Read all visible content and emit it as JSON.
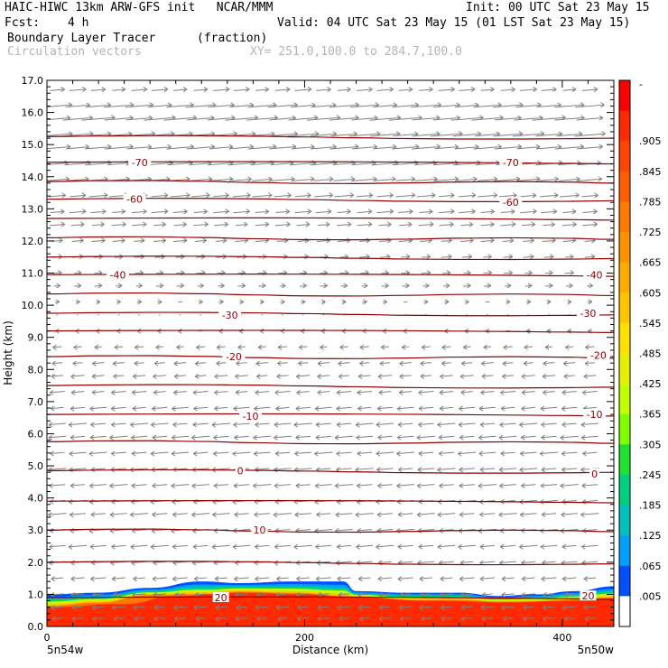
{
  "header": {
    "title_left": "HAIC-HIWC 13km ARW-GFS init   NCAR/MMM",
    "init": "Init: 00 UTC Sat 23 May 15",
    "fcst_label": "Fcst:",
    "fcst_value": "4 h",
    "valid": "Valid: 04 UTC Sat 23 May 15 (01 LST Sat 23 May 15)",
    "field": "Boundary Layer Tracer",
    "field_units": "(fraction)",
    "vectors": "Circulation vectors",
    "xy": "XY= 251.0,100.0 to 284.7,100.0"
  },
  "axes": {
    "ylabel": "Height (km)",
    "xlabel": "Distance (km)",
    "left_point": "5n54w",
    "right_point": "5n50w"
  },
  "colors": {
    "contour": "#8b0000",
    "vector": "#808080",
    "tracer_blue": "#0050ff",
    "tracer_red": "#ff2a00"
  },
  "chart_data": {
    "type": "heatmap",
    "xlim": [
      0,
      440
    ],
    "ylim": [
      0,
      17
    ],
    "x_ticks": [
      0,
      200,
      400
    ],
    "y_ticks": [
      "0.0",
      "1.0",
      "2.0",
      "3.0",
      "4.0",
      "5.0",
      "6.0",
      "7.0",
      "8.0",
      "9.0",
      "10.0",
      "11.0",
      "12.0",
      "13.0",
      "14.0",
      "15.0",
      "16.0",
      "17.0"
    ],
    "colorbar_labels": [
      "-",
      ".905",
      ".845",
      ".785",
      ".725",
      ".665",
      ".605",
      ".545",
      ".485",
      ".425",
      ".365",
      ".305",
      ".245",
      ".185",
      ".125",
      ".065",
      ".005"
    ],
    "colorbar_colors": [
      "#ff0000",
      "#ff2a00",
      "#ff4400",
      "#ff5e00",
      "#ff7800",
      "#ff9200",
      "#ffac00",
      "#ffc600",
      "#ffe000",
      "#e6f000",
      "#c0ff00",
      "#80ff00",
      "#20e030",
      "#00d080",
      "#00c0c0",
      "#00a0ff",
      "#0050ff",
      "#ffffff"
    ],
    "contour_heights_km": [
      0.9,
      2.0,
      3.0,
      3.9,
      4.85,
      5.75,
      6.6,
      7.5,
      8.4,
      9.2,
      9.75,
      10.35,
      10.95,
      11.5,
      12.1,
      12.7,
      13.3,
      13.85,
      14.45,
      15.25
    ],
    "contour_labels": [
      {
        "text": "20",
        "x": 135,
        "y": 0.9
      },
      {
        "text": "20",
        "x": 420,
        "y": 0.95
      },
      {
        "text": "10",
        "x": 165,
        "y": 3.0
      },
      {
        "text": "0",
        "x": 150,
        "y": 4.85
      },
      {
        "text": "0",
        "x": 425,
        "y": 4.75
      },
      {
        "text": "-10",
        "x": 158,
        "y": 6.55
      },
      {
        "text": "-10",
        "x": 425,
        "y": 6.6
      },
      {
        "text": "-20",
        "x": 145,
        "y": 8.4
      },
      {
        "text": "-20",
        "x": 428,
        "y": 8.45
      },
      {
        "text": "-30",
        "x": 142,
        "y": 9.7
      },
      {
        "text": "-30",
        "x": 420,
        "y": 9.75
      },
      {
        "text": "-40",
        "x": 55,
        "y": 10.95
      },
      {
        "text": "-40",
        "x": 425,
        "y": 10.95
      },
      {
        "text": "-60",
        "x": 68,
        "y": 13.3
      },
      {
        "text": "-60",
        "x": 360,
        "y": 13.2
      },
      {
        "text": "-70",
        "x": 72,
        "y": 14.45
      },
      {
        "text": "-70",
        "x": 360,
        "y": 14.45
      }
    ],
    "tracer_top_km": [
      {
        "x": 0,
        "y": 1.0
      },
      {
        "x": 40,
        "y": 1.05
      },
      {
        "x": 80,
        "y": 1.2
      },
      {
        "x": 120,
        "y": 1.4
      },
      {
        "x": 150,
        "y": 1.35
      },
      {
        "x": 190,
        "y": 1.4
      },
      {
        "x": 230,
        "y": 1.4
      },
      {
        "x": 240,
        "y": 1.1
      },
      {
        "x": 280,
        "y": 1.05
      },
      {
        "x": 320,
        "y": 1.05
      },
      {
        "x": 350,
        "y": 0.95
      },
      {
        "x": 380,
        "y": 1.0
      },
      {
        "x": 410,
        "y": 1.1
      },
      {
        "x": 440,
        "y": 1.25
      }
    ],
    "red_top_km": [
      {
        "x": 0,
        "y": 0.6
      },
      {
        "x": 60,
        "y": 0.7
      },
      {
        "x": 100,
        "y": 0.95
      },
      {
        "x": 150,
        "y": 1.05
      },
      {
        "x": 200,
        "y": 1.0
      },
      {
        "x": 240,
        "y": 0.9
      },
      {
        "x": 300,
        "y": 0.8
      },
      {
        "x": 360,
        "y": 0.75
      },
      {
        "x": 400,
        "y": 0.8
      },
      {
        "x": 440,
        "y": 0.85
      }
    ],
    "wind_profile": [
      {
        "z": 16.7,
        "u": 0.55
      },
      {
        "z": 16.2,
        "u": 1.0
      },
      {
        "z": 15.8,
        "u": 1.1
      },
      {
        "z": 15.3,
        "u": 1.05
      },
      {
        "z": 14.9,
        "u": 0.95
      },
      {
        "z": 14.4,
        "u": 0.9
      },
      {
        "z": 13.9,
        "u": 0.8
      },
      {
        "z": 13.4,
        "u": 0.65
      },
      {
        "z": 12.9,
        "u": 0.55
      },
      {
        "z": 12.5,
        "u": 0.5
      },
      {
        "z": 12.0,
        "u": 0.45
      },
      {
        "z": 11.5,
        "u": 0.35
      },
      {
        "z": 11.0,
        "u": 0.3
      },
      {
        "z": 10.6,
        "u": 0.25
      },
      {
        "z": 10.1,
        "u": 0.15
      },
      {
        "z": 9.7,
        "u": 0.05
      },
      {
        "z": 9.2,
        "u": -0.15
      },
      {
        "z": 8.7,
        "u": -0.3
      },
      {
        "z": 8.2,
        "u": -0.4
      },
      {
        "z": 7.8,
        "u": -0.45
      },
      {
        "z": 7.3,
        "u": -0.5
      },
      {
        "z": 6.8,
        "u": -0.55
      },
      {
        "z": 6.3,
        "u": -0.6
      },
      {
        "z": 5.9,
        "u": -0.6
      },
      {
        "z": 5.4,
        "u": -0.6
      },
      {
        "z": 4.9,
        "u": -0.6
      },
      {
        "z": 4.4,
        "u": -0.6
      },
      {
        "z": 3.9,
        "u": -0.6
      },
      {
        "z": 3.5,
        "u": -0.6
      },
      {
        "z": 3.0,
        "u": -0.6
      },
      {
        "z": 2.5,
        "u": -0.6
      },
      {
        "z": 2.0,
        "u": -0.55
      },
      {
        "z": 1.5,
        "u": -0.5
      },
      {
        "z": 1.0,
        "u": -0.45
      },
      {
        "z": 0.6,
        "u": -0.45
      },
      {
        "z": 0.25,
        "u": -0.4
      }
    ]
  }
}
